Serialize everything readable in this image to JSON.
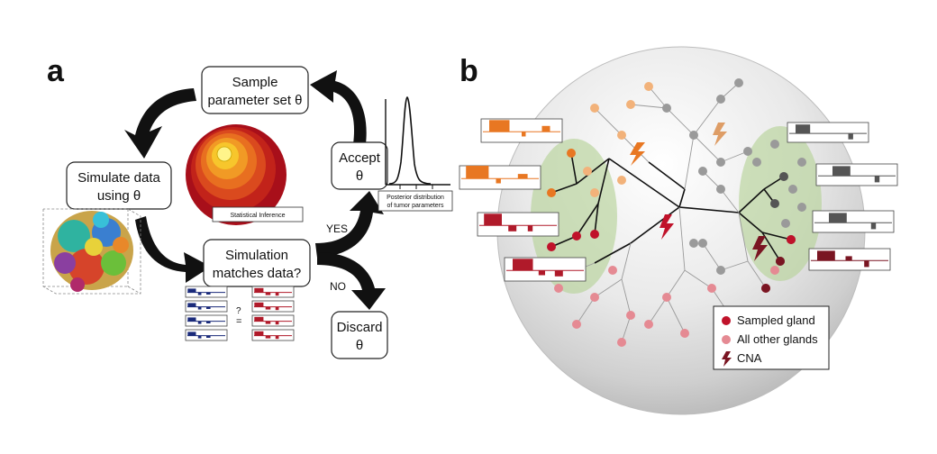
{
  "panel_a": {
    "letter": "a",
    "boxes": {
      "sample": [
        "Sample",
        "parameter set θ"
      ],
      "simulate": [
        "Simulate data",
        "using θ"
      ],
      "matches": [
        "Simulation",
        "matches data?"
      ],
      "accept": [
        "Accept",
        "θ"
      ],
      "discard": [
        "Discard",
        "θ"
      ]
    },
    "yes_label": "YES",
    "no_label": "NO",
    "question_mark": "?",
    "equals_sign": "=",
    "statistical_inference": "Statistical Inference",
    "posterior_caption": [
      "Posterior distribution",
      "of tumor parameters"
    ]
  },
  "panel_b": {
    "letter": "b",
    "legend": {
      "sampled": "Sampled gland",
      "other": "All other glands",
      "cna": "CNA"
    }
  },
  "colors": {
    "sampled_gland": "#c0122a",
    "other_gland": "#e58a93",
    "orange_gland": "#e87722",
    "light_orange_gland": "#f2b27a",
    "dark_gland": "#555555",
    "grey_gland": "#9a9a9a",
    "maroon_gland": "#7a1522",
    "profile_blue": "#1a2a7a",
    "profile_red": "#b01a2a",
    "green_region": "#b7d39a"
  }
}
